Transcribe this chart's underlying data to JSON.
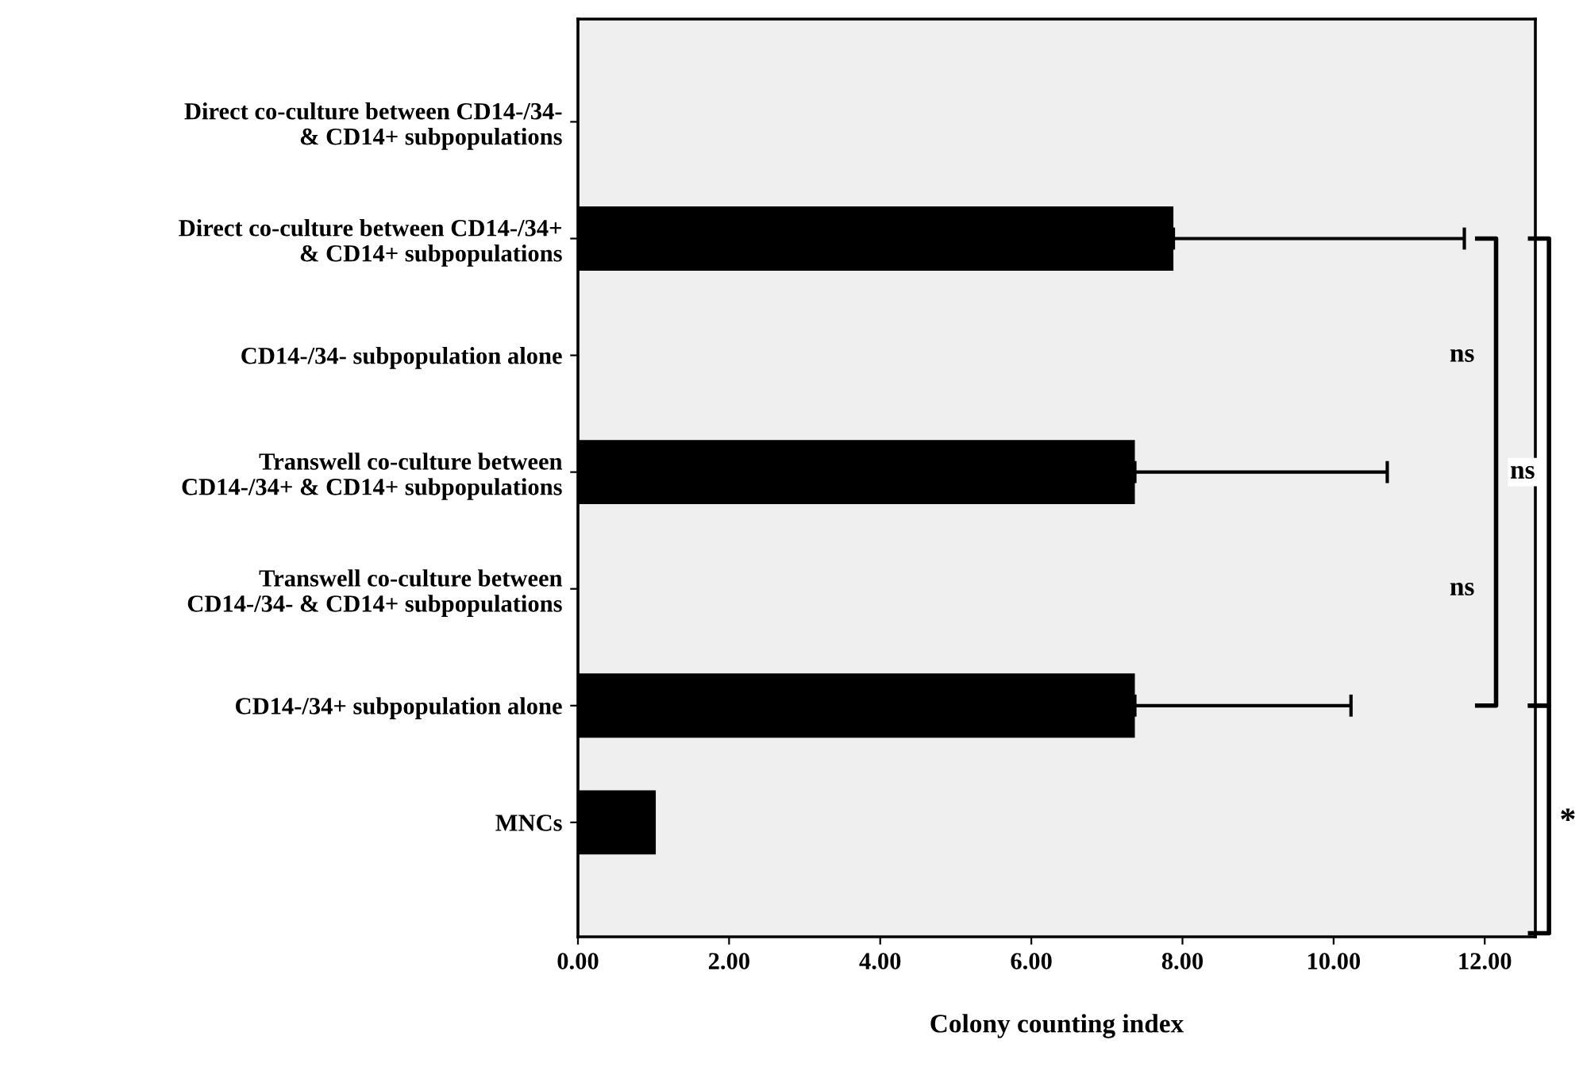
{
  "chart_data": {
    "type": "bar",
    "orientation": "horizontal",
    "xlabel": "Colony counting index",
    "categories": [
      "Direct co-culture between CD14-/34-\n& CD14+ subpopulations",
      "Direct co-culture between CD14-/34+\n& CD14+ subpopulations",
      "CD14-/34- subpopulation alone",
      "Transwell co-culture between\nCD14-/34+ & CD14+ subpopulations",
      "Transwell co-culture between\nCD14-/34- & CD14+ subpopulations",
      "CD14-/34+ subpopulation alone",
      "MNCs"
    ],
    "values": [
      null,
      7.88,
      null,
      7.37,
      null,
      7.37,
      1.03
    ],
    "errors": [
      null,
      [
        7.88,
        11.73
      ],
      null,
      [
        7.37,
        10.71
      ],
      null,
      [
        7.37,
        10.23
      ],
      null
    ],
    "color": "#000000",
    "xlim": [
      0,
      12.67
    ],
    "xticks": [
      {
        "value": 0,
        "label": "0.00"
      },
      {
        "value": 2,
        "label": "2.00"
      },
      {
        "value": 4,
        "label": "4.00"
      },
      {
        "value": 6,
        "label": "6.00"
      },
      {
        "value": 8,
        "label": "8.00"
      },
      {
        "value": 10,
        "label": "10.00"
      },
      {
        "value": 12,
        "label": "12.00"
      }
    ],
    "grid": false,
    "annotations": [
      "ns",
      "ns",
      "ns",
      "*"
    ]
  }
}
